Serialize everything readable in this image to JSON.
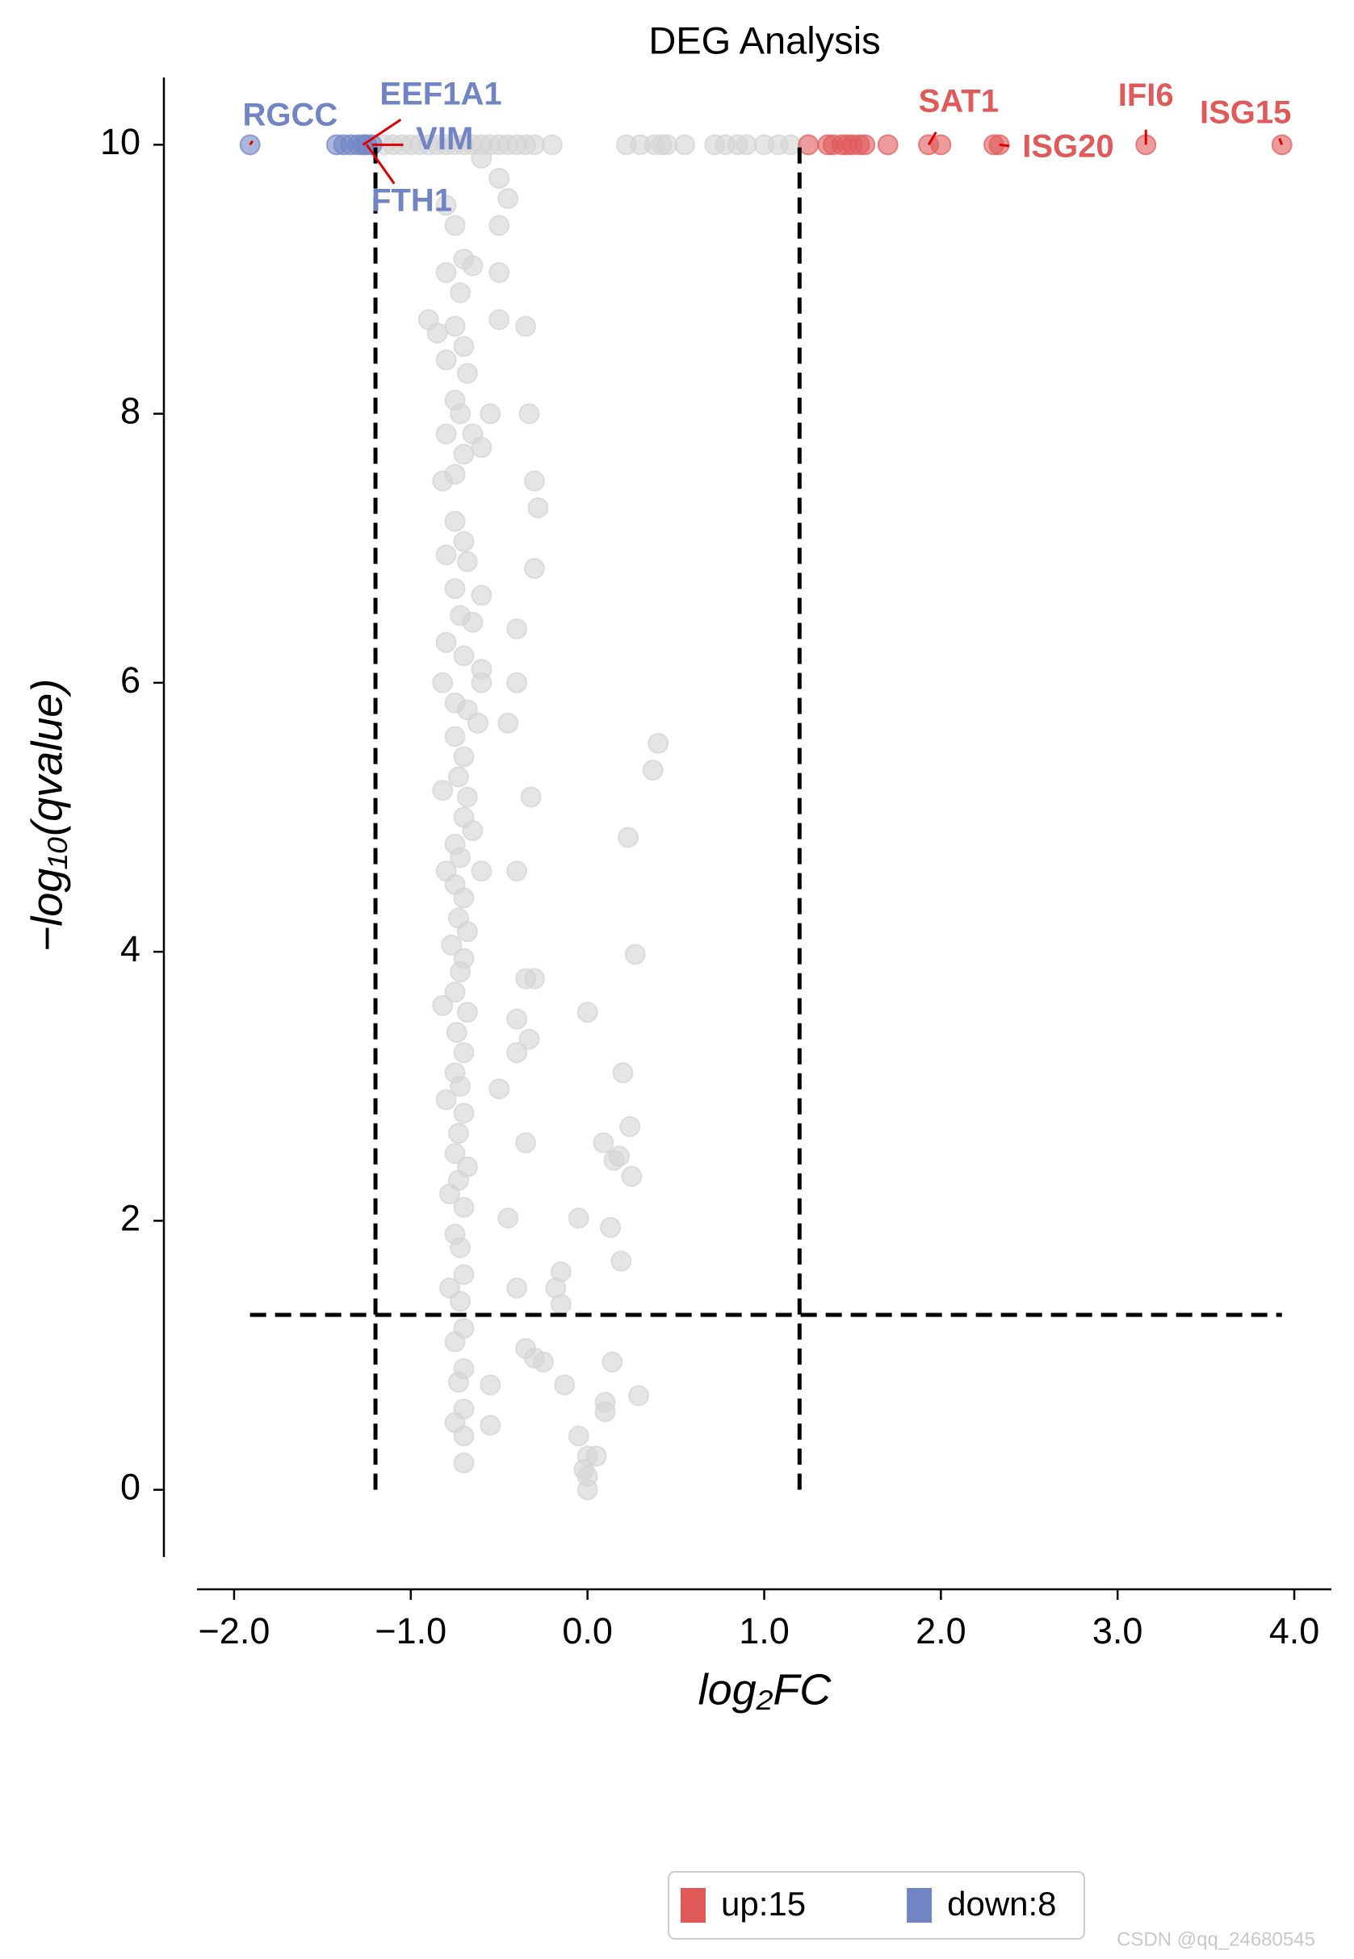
{
  "chart_data": {
    "type": "scatter",
    "title": "DEG Analysis",
    "xlabel": "log₂FC",
    "ylabel": "−log₁₀(qvalue)",
    "xlim": [
      -2.21,
      4.21
    ],
    "ylim": [
      -0.5,
      10.5
    ],
    "xticks": [
      {
        "value": -2,
        "label": "−2.0"
      },
      {
        "value": -1,
        "label": "−1.0"
      },
      {
        "value": 0,
        "label": "0.0"
      },
      {
        "value": 1,
        "label": "1.0"
      },
      {
        "value": 2,
        "label": "2.0"
      },
      {
        "value": 3,
        "label": "3.0"
      },
      {
        "value": 4,
        "label": "4.0"
      }
    ],
    "yticks": [
      0,
      2,
      4,
      6,
      8,
      10
    ],
    "thresholds": {
      "x": [
        -1.2,
        1.2
      ],
      "y": 1.3
    },
    "legend": "bottom",
    "series": [
      {
        "color": "#d3d3d3",
        "x": [
          -1.15,
          -1.1,
          -1.05,
          -1.0,
          -0.95,
          -0.9,
          -0.85,
          -0.8,
          -0.75,
          -0.7,
          -0.65,
          -0.6,
          -0.55,
          -0.5,
          -0.45,
          -0.4,
          -0.35,
          -0.3,
          -0.2,
          0.22,
          0.3,
          0.38,
          0.42,
          0.45,
          0.55,
          0.72,
          0.78,
          0.85,
          0.9,
          1.0,
          1.08,
          1.15,
          -0.5,
          -0.6,
          -0.45,
          -0.8,
          -0.75,
          -0.5,
          -0.7,
          -0.8,
          -0.65,
          -0.5,
          -0.72,
          -0.9,
          -0.85,
          -0.75,
          -0.5,
          -0.35,
          -0.7,
          -0.8,
          -0.68,
          -0.75,
          -0.72,
          -0.55,
          -0.33,
          -0.8,
          -0.65,
          -0.6,
          -0.7,
          -0.82,
          -0.75,
          -0.3,
          -0.28,
          -0.75,
          -0.7,
          -0.8,
          -0.68,
          -0.3,
          -0.75,
          -0.6,
          -0.72,
          -0.65,
          -0.4,
          -0.8,
          -0.7,
          -0.6,
          -0.82,
          -0.6,
          -0.4,
          -0.75,
          -0.68,
          -0.62,
          -0.45,
          -0.75,
          -0.7,
          0.4,
          0.37,
          -0.73,
          -0.82,
          -0.68,
          -0.32,
          -0.7,
          -0.65,
          0.23,
          -0.75,
          -0.72,
          -0.8,
          -0.6,
          -0.4,
          -0.75,
          -0.7,
          -0.73,
          -0.68,
          -0.77,
          -0.7,
          0.27,
          -0.72,
          -0.35,
          -0.3,
          -0.75,
          -0.82,
          -0.68,
          0.0,
          -0.4,
          -0.74,
          -0.33,
          -0.7,
          -0.4,
          -0.75,
          -0.72,
          0.2,
          -0.5,
          -0.8,
          -0.7,
          0.24,
          -0.73,
          -0.75,
          0.09,
          -0.35,
          -0.68,
          0.15,
          0.18,
          -0.73,
          0.25,
          -0.78,
          -0.7,
          -0.45,
          -0.05,
          0.13,
          -0.75,
          -0.72,
          0.19,
          -0.7,
          -0.15,
          -0.78,
          -0.4,
          -0.18,
          -0.72,
          -0.15,
          -0.7,
          -0.75,
          -0.35,
          0.14,
          -0.7,
          -0.3,
          -0.25,
          -0.73,
          -0.55,
          -0.13,
          0.29,
          -0.7,
          0.1,
          0.1,
          -0.75,
          -0.55,
          -0.7,
          -0.05,
          0.0,
          0.05,
          -0.02,
          -0.7,
          0.0,
          0.0
        ],
        "values": [
          10,
          10,
          10,
          10,
          10,
          10,
          10,
          10,
          10,
          10,
          10,
          10,
          10,
          10,
          10,
          10,
          10,
          10,
          10,
          10,
          10,
          10,
          10,
          10,
          10,
          10,
          10,
          10,
          10,
          10,
          10,
          10,
          9.75,
          9.9,
          9.6,
          9.55,
          9.4,
          9.4,
          9.15,
          9.05,
          9.1,
          9.05,
          8.9,
          8.7,
          8.6,
          8.65,
          8.7,
          8.65,
          8.5,
          8.4,
          8.3,
          8.1,
          8.0,
          8.0,
          8.0,
          7.85,
          7.85,
          7.75,
          7.7,
          7.5,
          7.55,
          7.5,
          7.3,
          7.2,
          7.05,
          6.95,
          6.9,
          6.85,
          6.7,
          6.65,
          6.5,
          6.45,
          6.4,
          6.3,
          6.2,
          6.1,
          6.0,
          6.0,
          6.0,
          5.85,
          5.8,
          5.7,
          5.7,
          5.6,
          5.45,
          5.55,
          5.35,
          5.3,
          5.2,
          5.15,
          5.15,
          5.0,
          4.9,
          4.85,
          4.8,
          4.7,
          4.6,
          4.6,
          4.6,
          4.5,
          4.4,
          4.25,
          4.15,
          4.05,
          3.95,
          3.98,
          3.85,
          3.8,
          3.8,
          3.7,
          3.6,
          3.55,
          3.55,
          3.5,
          3.4,
          3.35,
          3.25,
          3.25,
          3.1,
          3.0,
          3.1,
          2.98,
          2.9,
          2.8,
          2.7,
          2.65,
          2.5,
          2.58,
          2.58,
          2.4,
          2.45,
          2.48,
          2.3,
          2.33,
          2.2,
          2.1,
          2.02,
          2.02,
          1.95,
          1.9,
          1.8,
          1.7,
          1.6,
          1.62,
          1.5,
          1.5,
          1.5,
          1.4,
          1.38,
          1.2,
          1.1,
          1.05,
          0.95,
          0.9,
          0.98,
          0.95,
          0.8,
          0.78,
          0.78,
          0.7,
          0.6,
          0.65,
          0.58,
          0.5,
          0.48,
          0.4,
          0.4,
          0.25,
          0.25,
          0.15,
          0.2,
          0.1,
          0.0
        ]
      },
      {
        "name": "up:15",
        "color": "#e05a5a",
        "x": [
          1.25,
          1.36,
          1.39,
          1.44,
          1.47,
          1.5,
          1.54,
          1.57,
          1.7,
          1.93,
          2.0,
          2.3,
          2.33,
          3.16,
          3.93
        ],
        "values": [
          10,
          10,
          10,
          10,
          10,
          10,
          10,
          10,
          10,
          10,
          10,
          10,
          10,
          10,
          10
        ],
        "point_labels": [
          null,
          null,
          null,
          null,
          null,
          null,
          null,
          null,
          null,
          "SAT1",
          null,
          null,
          "ISG20",
          "IFI6",
          "ISG15"
        ]
      },
      {
        "name": "down:8",
        "color": "#7185c4",
        "x": [
          -1.91,
          -1.42,
          -1.38,
          -1.34,
          -1.3,
          -1.27,
          -1.25,
          -1.22
        ],
        "values": [
          10,
          10,
          10,
          10,
          10,
          10,
          10,
          10
        ],
        "point_labels": [
          "RGCC",
          null,
          null,
          null,
          null,
          "EEF1A1",
          "FTH1",
          "VIM"
        ]
      }
    ],
    "watermark": "CSDN @qq_24680545"
  }
}
